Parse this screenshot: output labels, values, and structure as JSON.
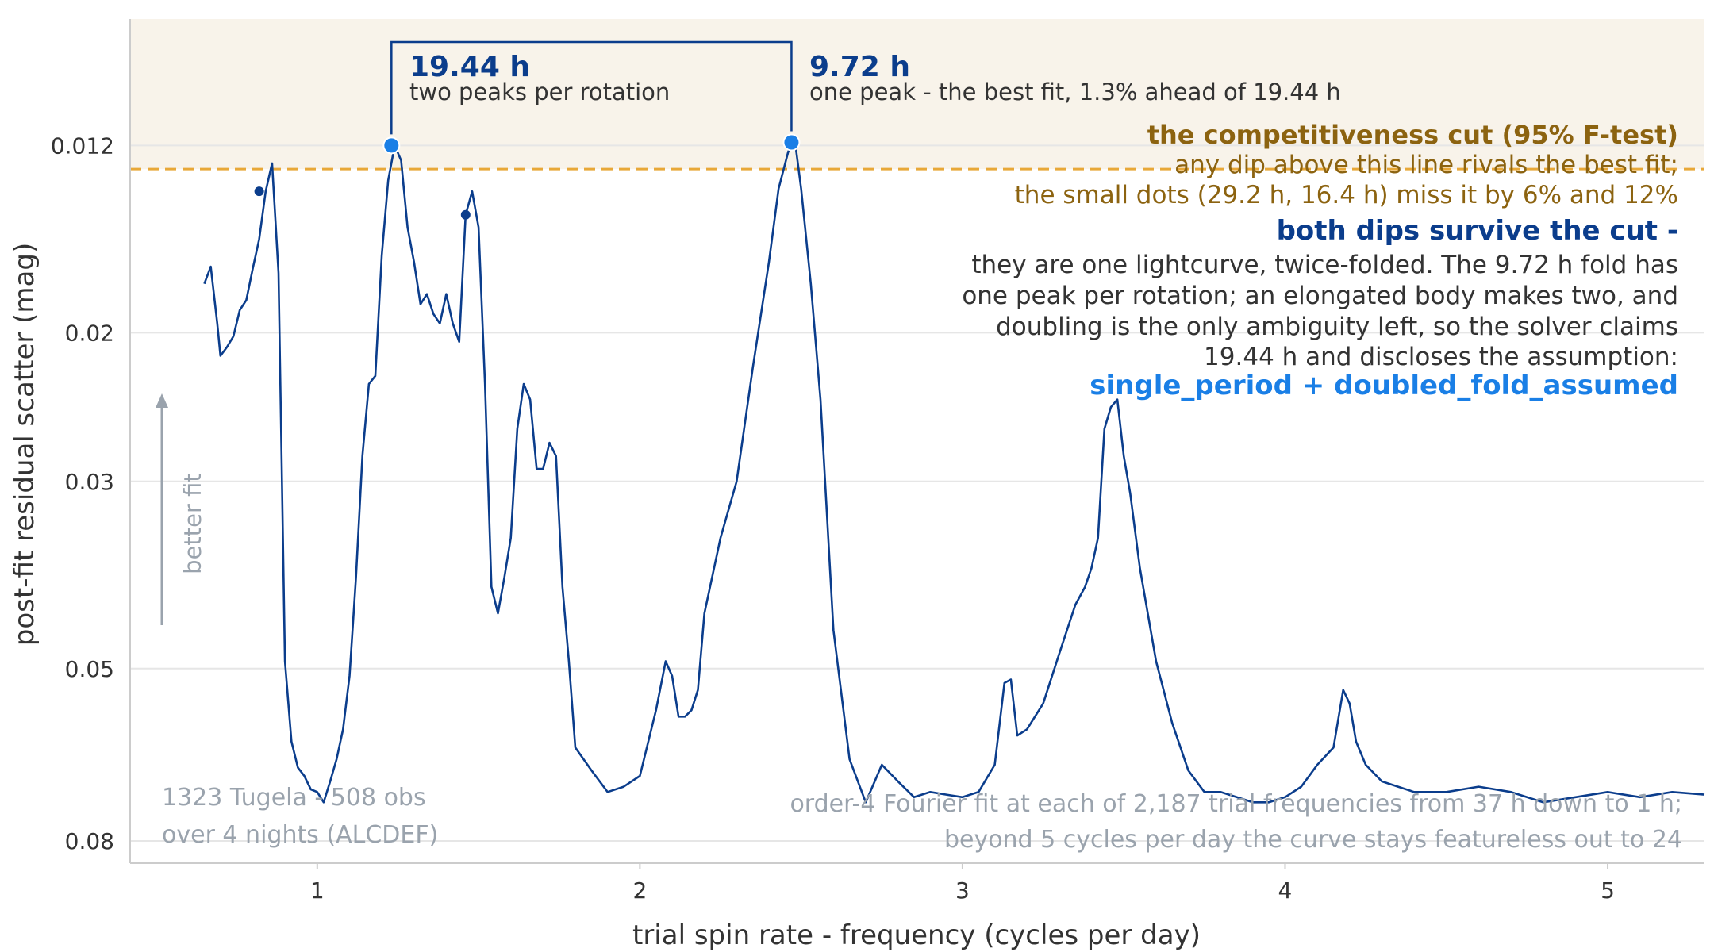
{
  "chart_data": {
    "type": "line",
    "xlabel": "trial spin rate - frequency (cycles per day)",
    "ylabel": "post-fit residual scatter (mag)",
    "xlim": [
      0.42,
      5.3
    ],
    "ylim": [
      0.0085,
      0.085
    ],
    "y_scale": "log",
    "y_inverted": true,
    "grid": true,
    "xticks": [
      1,
      2,
      3,
      4,
      5
    ],
    "xtick_labels": [
      "1",
      "2",
      "3",
      "4",
      "5"
    ],
    "yticks": [
      0.012,
      0.02,
      0.03,
      0.05,
      0.08
    ],
    "ytick_labels": [
      "0.012",
      "0.02",
      "0.03",
      "0.05",
      "0.08"
    ],
    "series": [
      {
        "color": "#0b3d8c",
        "x": [
          0.65,
          0.67,
          0.69,
          0.7,
          0.72,
          0.74,
          0.76,
          0.78,
          0.8,
          0.82,
          0.84,
          0.86,
          0.88,
          0.9,
          0.92,
          0.94,
          0.96,
          0.98,
          1.0,
          1.02,
          1.04,
          1.06,
          1.08,
          1.1,
          1.12,
          1.14,
          1.16,
          1.18,
          1.2,
          1.22,
          1.24,
          1.26,
          1.28,
          1.3,
          1.32,
          1.34,
          1.36,
          1.38,
          1.4,
          1.42,
          1.44,
          1.46,
          1.48,
          1.5,
          1.52,
          1.54,
          1.56,
          1.58,
          1.6,
          1.62,
          1.64,
          1.66,
          1.68,
          1.7,
          1.72,
          1.74,
          1.76,
          1.78,
          1.8,
          1.85,
          1.9,
          1.95,
          2.0,
          2.05,
          2.08,
          2.1,
          2.12,
          2.14,
          2.16,
          2.18,
          2.2,
          2.25,
          2.3,
          2.35,
          2.4,
          2.43,
          2.46,
          2.48,
          2.5,
          2.53,
          2.56,
          2.6,
          2.65,
          2.7,
          2.75,
          2.8,
          2.85,
          2.9,
          2.95,
          3.0,
          3.05,
          3.1,
          3.13,
          3.15,
          3.17,
          3.2,
          3.25,
          3.3,
          3.35,
          3.38,
          3.4,
          3.42,
          3.44,
          3.46,
          3.48,
          3.5,
          3.52,
          3.55,
          3.6,
          3.65,
          3.7,
          3.75,
          3.8,
          3.85,
          3.9,
          3.95,
          4.0,
          4.05,
          4.1,
          4.15,
          4.18,
          4.2,
          4.22,
          4.25,
          4.3,
          4.35,
          4.4,
          4.5,
          4.6,
          4.7,
          4.8,
          4.9,
          5.0,
          5.1,
          5.2,
          5.3
        ],
        "y": [
          0.0175,
          0.0167,
          0.0195,
          0.0213,
          0.0208,
          0.0202,
          0.0188,
          0.0183,
          0.0168,
          0.0155,
          0.0136,
          0.0126,
          0.017,
          0.049,
          0.061,
          0.0655,
          0.067,
          0.0695,
          0.07,
          0.072,
          0.068,
          0.064,
          0.059,
          0.051,
          0.039,
          0.028,
          0.023,
          0.0225,
          0.0162,
          0.0132,
          0.012,
          0.0125,
          0.015,
          0.0165,
          0.0185,
          0.018,
          0.019,
          0.0195,
          0.018,
          0.0195,
          0.0205,
          0.0145,
          0.0136,
          0.015,
          0.023,
          0.04,
          0.043,
          0.039,
          0.035,
          0.026,
          0.023,
          0.024,
          0.029,
          0.029,
          0.027,
          0.028,
          0.04,
          0.049,
          0.062,
          0.066,
          0.07,
          0.069,
          0.067,
          0.056,
          0.049,
          0.051,
          0.057,
          0.057,
          0.056,
          0.053,
          0.043,
          0.035,
          0.03,
          0.022,
          0.0165,
          0.0135,
          0.0122,
          0.0118,
          0.0135,
          0.0175,
          0.024,
          0.045,
          0.064,
          0.072,
          0.065,
          0.068,
          0.071,
          0.07,
          0.0705,
          0.071,
          0.07,
          0.065,
          0.052,
          0.0515,
          0.06,
          0.059,
          0.055,
          0.048,
          0.042,
          0.04,
          0.038,
          0.035,
          0.026,
          0.0245,
          0.024,
          0.028,
          0.031,
          0.038,
          0.049,
          0.058,
          0.066,
          0.07,
          0.07,
          0.071,
          0.072,
          0.072,
          0.071,
          0.069,
          0.065,
          0.062,
          0.053,
          0.055,
          0.061,
          0.065,
          0.068,
          0.069,
          0.07,
          0.07,
          0.069,
          0.07,
          0.072,
          0.071,
          0.07,
          0.071,
          0.07,
          0.0705
        ]
      }
    ],
    "competitiveness_cut": 0.0128,
    "highlight_points": [
      {
        "x": 1.23,
        "y": 0.012,
        "label": "19.44 h",
        "sublabel": "two peaks per rotation",
        "color": "#1a7fe6"
      },
      {
        "x": 2.47,
        "y": 0.0119,
        "label": "9.72 h",
        "sublabel": "one peak - the best fit, 1.3% ahead of 19.44 h",
        "color": "#1a7fe6"
      }
    ],
    "small_dots": [
      {
        "x": 0.82,
        "y": 0.0136,
        "color": "#0b3d8c"
      },
      {
        "x": 1.46,
        "y": 0.0145,
        "color": "#0b3d8c"
      }
    ],
    "better_fit_label": "better fit",
    "annotations": {
      "cut_title": "the competitiveness cut (95% F-test)",
      "cut_line1": "any dip above this line rivals the best fit;",
      "cut_line2": "the small dots (29.2 h, 16.4 h) miss it by 6% and 12%",
      "survive_title": "both dips survive the cut -",
      "survive_lines": [
        "they are one lightcurve, twice-folded. The 9.72 h fold has",
        "one peak per rotation; an elongated body makes two, and",
        "doubling is the only ambiguity left, so the solver claims",
        "19.44 h and discloses the assumption:"
      ],
      "verdict": "single_period + doubled_fold_assumed",
      "source_line1": "1323 Tugela - 508 obs",
      "source_line2": "over 4 nights (ALCDEF)",
      "method_line1": "order-4 Fourier fit at each of 2,187 trial frequencies from 37 h down to 1 h;",
      "method_line2": "beyond 5 cycles per day the curve stays featureless out to 24"
    },
    "colors": {
      "line": "#0b3d8c",
      "highlight": "#1a7fe6",
      "cut_band": "#f8f3ea",
      "cut_line": "#e8a838",
      "cut_text": "#8c6310",
      "survive_text": "#0b3d8c",
      "verdict_text": "#1a7fe6",
      "muted_text": "#9aa3ad",
      "grid": "#e6e6e6"
    }
  }
}
